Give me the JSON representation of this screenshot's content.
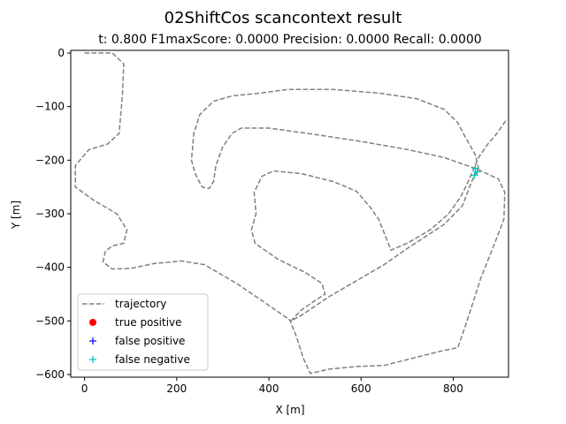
{
  "chart_data": {
    "type": "line",
    "title": "02ShiftCos scancontext result",
    "subtitle": "t:  0.800  F1maxScore:  0.0000  Precision:  0.0000  Recall:  0.0000",
    "xlabel": "X [m]",
    "ylabel": "Y [m]",
    "xlim": [
      -30,
      920
    ],
    "ylim": [
      -605,
      5
    ],
    "xticks": [
      0,
      200,
      400,
      600,
      800
    ],
    "yticks": [
      0,
      -100,
      -200,
      -300,
      -400,
      -500,
      -600
    ],
    "grid": false,
    "legend_position": "lower-left",
    "series": [
      {
        "name": "trajectory",
        "style": "dashed",
        "color": "#808080",
        "points": [
          [
            0,
            0
          ],
          [
            60,
            0
          ],
          [
            85,
            -20
          ],
          [
            82,
            -80
          ],
          [
            75,
            -150
          ],
          [
            50,
            -170
          ],
          [
            10,
            -180
          ],
          [
            -20,
            -210
          ],
          [
            -20,
            -250
          ],
          [
            20,
            -275
          ],
          [
            70,
            -300
          ],
          [
            92,
            -330
          ],
          [
            85,
            -355
          ],
          [
            60,
            -360
          ],
          [
            45,
            -370
          ],
          [
            40,
            -390
          ],
          [
            60,
            -403
          ],
          [
            100,
            -402
          ],
          [
            150,
            -393
          ],
          [
            210,
            -388
          ],
          [
            260,
            -395
          ],
          [
            330,
            -430
          ],
          [
            390,
            -465
          ],
          [
            445,
            -498
          ],
          [
            460,
            -530
          ],
          [
            475,
            -570
          ],
          [
            490,
            -598
          ],
          [
            530,
            -590
          ],
          [
            590,
            -585
          ],
          [
            650,
            -583
          ],
          [
            710,
            -570
          ],
          [
            770,
            -557
          ],
          [
            810,
            -550
          ],
          [
            830,
            -500
          ],
          [
            860,
            -420
          ],
          [
            890,
            -355
          ],
          [
            910,
            -310
          ],
          [
            912,
            -260
          ],
          [
            898,
            -235
          ],
          [
            860,
            -220
          ],
          [
            830,
            -210
          ],
          [
            780,
            -195
          ],
          [
            700,
            -180
          ],
          [
            600,
            -165
          ],
          [
            500,
            -152
          ],
          [
            400,
            -140
          ],
          [
            340,
            -140
          ],
          [
            320,
            -150
          ],
          [
            300,
            -175
          ],
          [
            285,
            -210
          ],
          [
            280,
            -240
          ],
          [
            270,
            -253
          ],
          [
            255,
            -250
          ],
          [
            240,
            -225
          ],
          [
            232,
            -200
          ],
          [
            234,
            -180
          ],
          [
            237,
            -150
          ],
          [
            250,
            -115
          ],
          [
            280,
            -90
          ],
          [
            320,
            -80
          ],
          [
            380,
            -75
          ],
          [
            440,
            -68
          ],
          [
            540,
            -68
          ],
          [
            640,
            -75
          ],
          [
            720,
            -85
          ],
          [
            780,
            -105
          ],
          [
            810,
            -130
          ],
          [
            825,
            -155
          ],
          [
            848,
            -190
          ],
          [
            855,
            -215
          ],
          [
            840,
            -240
          ],
          [
            820,
            -285
          ],
          [
            780,
            -320
          ],
          [
            700,
            -365
          ],
          [
            650,
            -395
          ],
          [
            590,
            -425
          ],
          [
            530,
            -455
          ],
          [
            470,
            -490
          ],
          [
            448,
            -500
          ],
          [
            470,
            -480
          ],
          [
            500,
            -462
          ],
          [
            522,
            -450
          ],
          [
            515,
            -430
          ],
          [
            480,
            -410
          ],
          [
            420,
            -385
          ],
          [
            370,
            -355
          ],
          [
            362,
            -330
          ],
          [
            372,
            -300
          ],
          [
            368,
            -260
          ],
          [
            385,
            -230
          ],
          [
            410,
            -220
          ],
          [
            470,
            -225
          ],
          [
            540,
            -240
          ],
          [
            590,
            -258
          ],
          [
            620,
            -288
          ],
          [
            638,
            -310
          ],
          [
            652,
            -340
          ],
          [
            665,
            -368
          ],
          [
            700,
            -355
          ],
          [
            750,
            -330
          ],
          [
            790,
            -300
          ],
          [
            815,
            -270
          ],
          [
            830,
            -245
          ],
          [
            845,
            -215
          ],
          [
            855,
            -195
          ],
          [
            875,
            -170
          ],
          [
            895,
            -150
          ],
          [
            915,
            -125
          ]
        ]
      },
      {
        "name": "true positive",
        "style": "marker-circle",
        "color": "#ff0000",
        "points": []
      },
      {
        "name": "false positive",
        "style": "marker-plus",
        "color": "#0000ff",
        "points": []
      },
      {
        "name": "false negative",
        "style": "marker-plus",
        "color": "#00bfbf",
        "points": [
          [
            848,
            -215
          ],
          [
            852,
            -222
          ],
          [
            846,
            -228
          ]
        ]
      }
    ]
  }
}
